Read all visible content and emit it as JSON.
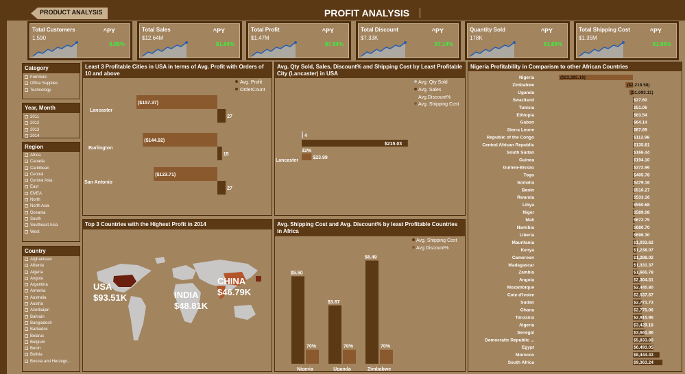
{
  "header": {
    "back_label": "PRODUCT ANALYSIS",
    "title": "PROFIT ANALYSIS"
  },
  "kpis": [
    {
      "title": "Total Customers",
      "value": "1,590",
      "py": "^PY",
      "pct": "8.85%"
    },
    {
      "title": "Total Sales",
      "value": "$12.64M",
      "py": "^PY",
      "pct": "81.84%"
    },
    {
      "title": "Total Profit",
      "value": "$1.47M",
      "py": "^PY",
      "pct": "87.94%"
    },
    {
      "title": "Total Discount",
      "value": "$7.33K",
      "py": "^PY",
      "pct": "87.14%"
    },
    {
      "title": "Quantity Sold",
      "value": "178K",
      "py": "^PY",
      "pct": "81.89%"
    },
    {
      "title": "Total Shipping Cost",
      "value": "$1.35M",
      "py": "^PY",
      "pct": "81.65%"
    }
  ],
  "slicers": {
    "category": {
      "title": "Category",
      "items": [
        "Furniture",
        "Office Supplies",
        "Technology"
      ]
    },
    "year_month": {
      "title": "Year, Month",
      "items": [
        "2011",
        "2012",
        "2013",
        "2014"
      ]
    },
    "region": {
      "title": "Region",
      "items": [
        "Africa",
        "Canada",
        "Caribbean",
        "Central",
        "Central Asia",
        "East",
        "EMEA",
        "North",
        "North Asia",
        "Oceania",
        "South",
        "Southeast Asia",
        "West"
      ]
    },
    "country": {
      "title": "Country",
      "items": [
        "Afghanistan",
        "Albania",
        "Algeria",
        "Angola",
        "Argentina",
        "Armenia",
        "Australia",
        "Austria",
        "Azerbaijan",
        "Bahrain",
        "Bangladesh",
        "Barbados",
        "Belarus",
        "Belgium",
        "Benin",
        "Bolivia",
        "Bosnia and Herzego..."
      ]
    }
  },
  "least_cities": {
    "title": "Least 3 Profitable Cities in USA in terms of Avg. Profit with Orders of 10 and above",
    "legend": [
      "Avg. Profit",
      "OrderCount"
    ],
    "colors": {
      "profit": "#8a5a2e",
      "count": "#5c3915"
    },
    "chart_data": {
      "type": "bar",
      "categories": [
        "Lancaster",
        "Burlington",
        "San Antonio"
      ],
      "series": [
        {
          "name": "Avg. Profit",
          "values": [
            -157.37,
            -144.92,
            -123.71
          ],
          "labels": [
            "($157.37)",
            "($144.92)",
            "($123.71)"
          ]
        },
        {
          "name": "OrderCount",
          "values": [
            27,
            15,
            27
          ],
          "labels": [
            "27",
            "15",
            "27"
          ]
        }
      ]
    }
  },
  "lancaster": {
    "title": "Avg. Qty Sold, Sales, Discount% and Shipping Cost by Least Profitable City (Lancaster) in USA",
    "legend": [
      "Avg. Qty Sold",
      "Avg. Sales",
      "Avg.Discount%",
      "Avg. Shipping Cost"
    ],
    "category": "Lancaster",
    "chart_data": {
      "type": "bar",
      "categories": [
        "Lancaster"
      ],
      "series": [
        {
          "name": "Avg. Qty Sold",
          "values": [
            4
          ],
          "label": "4"
        },
        {
          "name": "Avg. Sales",
          "values": [
            215.03
          ],
          "label": "$215.03"
        },
        {
          "name": "Avg.Discount%",
          "values": [
            32
          ],
          "label": "32%"
        },
        {
          "name": "Avg. Shipping Cost",
          "values": [
            23.99
          ],
          "label": "$23.99"
        }
      ]
    }
  },
  "map": {
    "title": "Top 3 Countries with the Highest Profit in 2014",
    "callouts": [
      {
        "name": "USA",
        "value": "$93.51K"
      },
      {
        "name": "INDIA",
        "value": "$48.81K"
      },
      {
        "name": "CHINA",
        "value": "$46.79K"
      }
    ]
  },
  "africa_ship": {
    "title": "Avg. Shipping Cost and Avg. Discount% by least Profitable Countries in Africa",
    "legend": [
      "Avg. Shipping Cost",
      "Avg.Discount%"
    ],
    "chart_data": {
      "type": "bar",
      "categories": [
        "Nigeria",
        "Uganda",
        "Zimbabwe"
      ],
      "series": [
        {
          "name": "Avg. Shipping Cost",
          "values": [
            5.5,
            3.67,
            6.49
          ],
          "labels": [
            "$5.50",
            "$3.67",
            "$6.49"
          ]
        },
        {
          "name": "Avg.Discount%",
          "values": [
            70,
            70,
            70
          ],
          "labels": [
            "70%",
            "70%",
            "70%"
          ]
        }
      ]
    }
  },
  "nigeria": {
    "title": "Nigeria Profitability in Comparism to other African Countries",
    "chart_data": {
      "type": "bar",
      "rows": [
        {
          "country": "Nigeria",
          "value": -23285.19,
          "label": "($23,285.19)"
        },
        {
          "country": "Zimbabwe",
          "value": -2218.58,
          "label": "($2,218.58)"
        },
        {
          "country": "Uganda",
          "value": -1093.11,
          "label": "($1,093.11)"
        },
        {
          "country": "Swaziland",
          "value": 27.6,
          "label": "$27.60"
        },
        {
          "country": "Tunisia",
          "value": 51.06,
          "label": "$51.06"
        },
        {
          "country": "Ethiopia",
          "value": 63.54,
          "label": "$63.54"
        },
        {
          "country": "Gabon",
          "value": 64.14,
          "label": "$64.14"
        },
        {
          "country": "Sierra Leone",
          "value": 87.69,
          "label": "$87.69"
        },
        {
          "country": "Republic of the Congo",
          "value": 112.98,
          "label": "$112.98"
        },
        {
          "country": "Central African Republic",
          "value": 135.81,
          "label": "$135.81"
        },
        {
          "country": "South Sudan",
          "value": 166.44,
          "label": "$166.44"
        },
        {
          "country": "Guinea",
          "value": 194.1,
          "label": "$194.10"
        },
        {
          "country": "Guinea-Bissau",
          "value": 372.96,
          "label": "$372.96"
        },
        {
          "country": "Togo",
          "value": 405.78,
          "label": "$405.78"
        },
        {
          "country": "Somalia",
          "value": 479.16,
          "label": "$479.16"
        },
        {
          "country": "Benin",
          "value": 516.27,
          "label": "$516.27"
        },
        {
          "country": "Rwanda",
          "value": 533.16,
          "label": "$533.16"
        },
        {
          "country": "Libya",
          "value": 550.68,
          "label": "$550.68"
        },
        {
          "country": "Niger",
          "value": 589.08,
          "label": "$589.08"
        },
        {
          "country": "Mali",
          "value": 672.75,
          "label": "$672.75"
        },
        {
          "country": "Namibia",
          "value": 680.7,
          "label": "$680.70"
        },
        {
          "country": "Liberia",
          "value": 696.3,
          "label": "$696.30"
        },
        {
          "country": "Mauritania",
          "value": 1033.62,
          "label": "$1,033.62"
        },
        {
          "country": "Kenya",
          "value": 1238.07,
          "label": "$1,238.07"
        },
        {
          "country": "Cameroon",
          "value": 1288.02,
          "label": "$1,288.02"
        },
        {
          "country": "Madagascar",
          "value": 1331.37,
          "label": "$1,331.37"
        },
        {
          "country": "Zambia",
          "value": 1665.78,
          "label": "$1,665.78"
        },
        {
          "country": "Angola",
          "value": 2304.51,
          "label": "$2,304.51"
        },
        {
          "country": "Mozambique",
          "value": 2440.8,
          "label": "$2,440.80"
        },
        {
          "country": "Cote d'Ivoire",
          "value": 2537.67,
          "label": "$2,537.67"
        },
        {
          "country": "Sudan",
          "value": 2771.73,
          "label": "$2,771.73"
        },
        {
          "country": "Ghana",
          "value": 2775.06,
          "label": "$2,775.06"
        },
        {
          "country": "Tanzania",
          "value": 2915.96,
          "label": "$2,915.96"
        },
        {
          "country": "Algeria",
          "value": 3429.18,
          "label": "$3,429.18"
        },
        {
          "country": "Senegal",
          "value": 3661.86,
          "label": "$3,661.86"
        },
        {
          "country": "Democratic Republic ...",
          "value": 5833.8,
          "label": "$5,833.80"
        },
        {
          "country": "Egypt",
          "value": 6493.05,
          "label": "$6,493.05"
        },
        {
          "country": "Morocco",
          "value": 8444.43,
          "label": "$8,444.43"
        },
        {
          "country": "South Africa",
          "value": 9363.24,
          "label": "$9,363.24"
        }
      ]
    }
  }
}
